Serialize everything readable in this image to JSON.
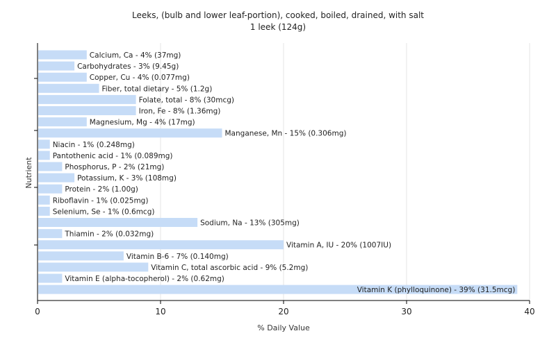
{
  "chart_data": {
    "type": "bar",
    "orientation": "horizontal",
    "title": "Leeks, (bulb and lower leaf-portion), cooked, boiled, drained, with salt",
    "subtitle": "1 leek (124g)",
    "xlabel": "% Daily Value",
    "ylabel": "Nutrient",
    "xlim": [
      0,
      40
    ],
    "xticks": [
      "0",
      "10",
      "20",
      "30",
      "40"
    ],
    "grid": true,
    "bar_color": "#c6dcf7",
    "categories": [
      "Calcium, Ca",
      "Carbohydrates",
      "Copper, Cu",
      "Fiber, total dietary",
      "Folate, total",
      "Iron, Fe",
      "Magnesium, Mg",
      "Manganese, Mn",
      "Niacin",
      "Pantothenic acid",
      "Phosphorus, P",
      "Potassium, K",
      "Protein",
      "Riboflavin",
      "Selenium, Se",
      "Sodium, Na",
      "Thiamin",
      "Vitamin A, IU",
      "Vitamin B-6",
      "Vitamin C, total ascorbic acid",
      "Vitamin E (alpha-tocopherol)",
      "Vitamin K (phylloquinone)"
    ],
    "values": [
      4,
      3,
      4,
      5,
      8,
      8,
      4,
      15,
      1,
      1,
      2,
      3,
      2,
      1,
      1,
      13,
      2,
      20,
      7,
      9,
      2,
      39
    ],
    "labels": [
      "Calcium, Ca - 4% (37mg)",
      "Carbohydrates - 3% (9.45g)",
      "Copper, Cu - 4% (0.077mg)",
      "Fiber, total dietary - 5% (1.2g)",
      "Folate, total - 8% (30mcg)",
      "Iron, Fe - 8% (1.36mg)",
      "Magnesium, Mg - 4% (17mg)",
      "Manganese, Mn - 15% (0.306mg)",
      "Niacin - 1% (0.248mg)",
      "Pantothenic acid - 1% (0.089mg)",
      "Phosphorus, P - 2% (21mg)",
      "Potassium, K - 3% (108mg)",
      "Protein - 2% (1.00g)",
      "Riboflavin - 1% (0.025mg)",
      "Selenium, Se - 1% (0.6mcg)",
      "Sodium, Na - 13% (305mg)",
      "Thiamin - 2% (0.032mg)",
      "Vitamin A, IU - 20% (1007IU)",
      "Vitamin B-6 - 7% (0.140mg)",
      "Vitamin C, total ascorbic acid - 9% (5.2mg)",
      "Vitamin E (alpha-tocopherol) - 2% (0.62mg)",
      "Vitamin K (phylloquinone) - 39% (31.5mcg)"
    ]
  }
}
